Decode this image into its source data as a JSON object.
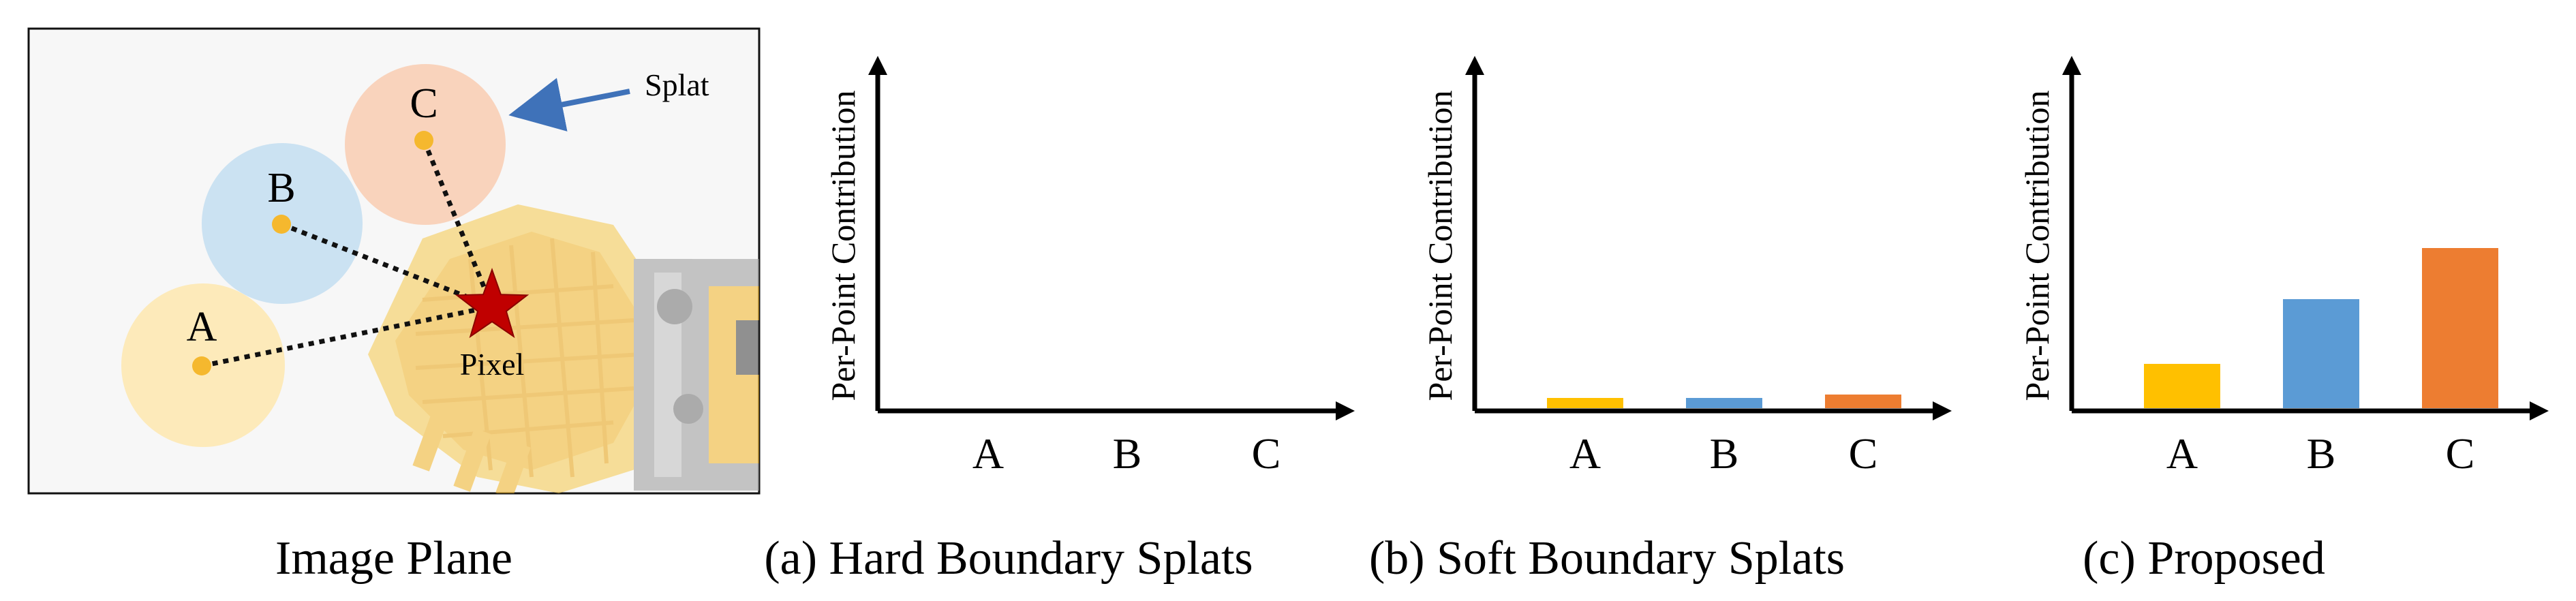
{
  "image_plane": {
    "caption": "Image Plane",
    "points": [
      {
        "label": "A",
        "color": "#F5B82E",
        "splat_color": "#FDE8B4"
      },
      {
        "label": "B",
        "color": "#F5B82E",
        "splat_color": "#C7DFF1"
      },
      {
        "label": "C",
        "color": "#F5B82E",
        "splat_color": "#F8CFB6"
      }
    ],
    "pixel_label": "Pixel",
    "pixel_color": "#C00000",
    "splat_annotation": "Splat",
    "arrow_color": "#3F72B9"
  },
  "charts": [
    {
      "caption": "(a) Hard Boundary Splats",
      "ylabel": "Per-Point Contribution",
      "chart_data": {
        "type": "bar",
        "categories": [
          "A",
          "B",
          "C"
        ],
        "values": [
          0,
          0,
          0
        ],
        "ylim": [
          0,
          1
        ],
        "grid": false
      }
    },
    {
      "caption": "(b) Soft Boundary Splats",
      "ylabel": "Per-Point Contribution",
      "chart_data": {
        "type": "bar",
        "categories": [
          "A",
          "B",
          "C"
        ],
        "values": [
          0.03,
          0.03,
          0.04
        ],
        "ylim": [
          0,
          1
        ],
        "grid": false
      }
    },
    {
      "caption": "(c) Proposed",
      "ylabel": "Per-Point Contribution",
      "chart_data": {
        "type": "bar",
        "categories": [
          "A",
          "B",
          "C"
        ],
        "values": [
          0.13,
          0.32,
          0.47
        ],
        "ylim": [
          0,
          1
        ],
        "grid": false
      }
    }
  ],
  "bar_colors": [
    "#FFC000",
    "#5B9BD5",
    "#ED7D31"
  ]
}
